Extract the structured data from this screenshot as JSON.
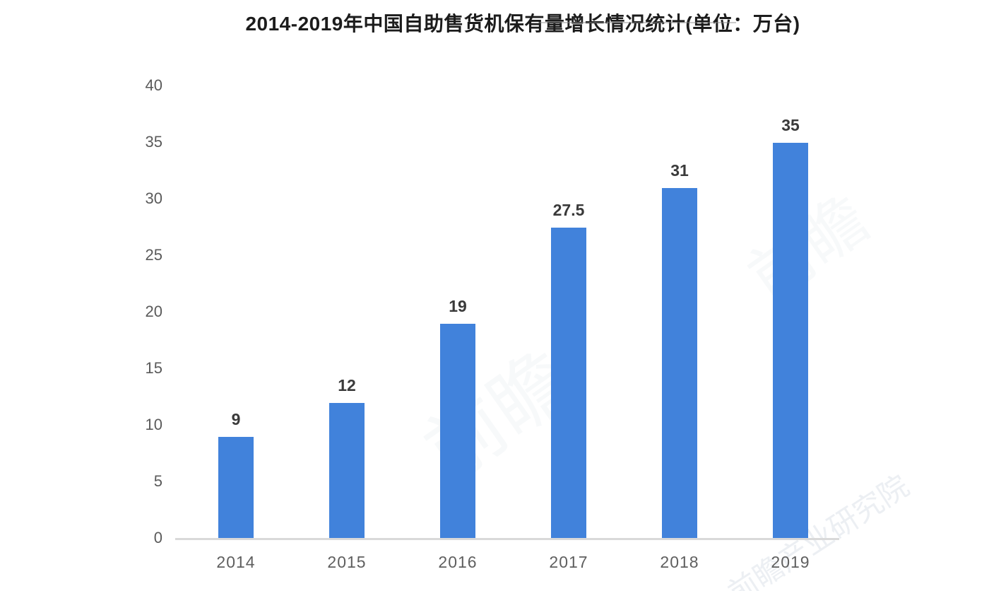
{
  "title": "2014-2019年中国自助售货机保有量增长情况统计(单位：万台)",
  "watermarks": {
    "large_1": "前瞻",
    "large_2": "前瞻",
    "bottom_right": "前瞻产业研究院"
  },
  "colors": {
    "bar": "#4182DB",
    "axis_line": "#D9D9D9",
    "tick_label": "#5A5A5A",
    "value_label": "#3A3A3A",
    "title": "#1C1C1C"
  },
  "chart_data": {
    "type": "bar",
    "title": "2014-2019年中国自助售货机保有量增长情况统计(单位：万台)",
    "unit": "万台",
    "categories": [
      "2014",
      "2015",
      "2016",
      "2017",
      "2018",
      "2019"
    ],
    "values": [
      9,
      12,
      19,
      27.5,
      31,
      35
    ],
    "value_labels": [
      "9",
      "12",
      "19",
      "27.5",
      "31",
      "35"
    ],
    "y_ticks": [
      0,
      5,
      10,
      15,
      20,
      25,
      30,
      35,
      40
    ],
    "ylim": [
      0,
      40
    ],
    "xlabel": "",
    "ylabel": "",
    "grid": false,
    "legend": false
  }
}
